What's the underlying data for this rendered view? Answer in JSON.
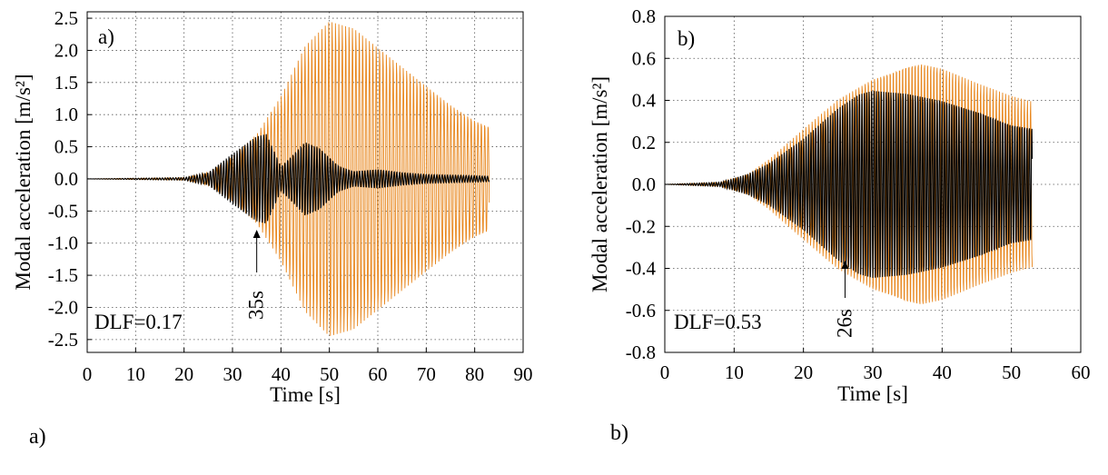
{
  "chart_data": [
    {
      "type": "line",
      "panel_label": "a)",
      "caption": "a)",
      "annotation": "DLF=0.17",
      "arrow_label": "35s",
      "arrow_x": 35,
      "xlabel": "Time [s]",
      "ylabel": "Modal acceleration [m/s²]",
      "xlim": [
        0,
        90
      ],
      "ylim": [
        -2.7,
        2.6
      ],
      "xticks": [
        0,
        10,
        20,
        30,
        40,
        50,
        60,
        70,
        80,
        90
      ],
      "xtick_labels": [
        "0",
        "10",
        "20",
        "30",
        "40",
        "50",
        "60",
        "70",
        "80",
        "90"
      ],
      "yticks": [
        -2.5,
        -2.0,
        -1.5,
        -1.0,
        -0.5,
        0.0,
        0.5,
        1.0,
        1.5,
        2.0,
        2.5
      ],
      "ytick_labels": [
        "-2.5",
        "-2.0",
        "-1.5",
        "-1.0",
        "-0.5",
        "0.0",
        "0.5",
        "1.0",
        "1.5",
        "2.0",
        "2.5"
      ],
      "grid": true,
      "series": [
        {
          "color": "#e8871e",
          "t_end": 83,
          "cycle_period_s": 0.7,
          "envelope_t": [
            0,
            20,
            25,
            30,
            35,
            40,
            45,
            50,
            55,
            60,
            65,
            70,
            75,
            80,
            83
          ],
          "envelope_amp": [
            0,
            0.02,
            0.1,
            0.35,
            0.7,
            1.3,
            2.1,
            2.5,
            2.4,
            2.1,
            1.8,
            1.5,
            1.2,
            0.95,
            0.85
          ]
        },
        {
          "color": "#000000",
          "t_end": 83,
          "cycle_period_s": 0.55,
          "envelope_t": [
            0,
            20,
            25,
            30,
            35,
            37,
            40,
            42,
            45,
            48,
            52,
            55,
            60,
            65,
            70,
            75,
            80,
            83
          ],
          "envelope_amp": [
            0,
            0.02,
            0.1,
            0.4,
            0.68,
            0.72,
            0.2,
            0.35,
            0.6,
            0.5,
            0.2,
            0.12,
            0.15,
            0.1,
            0.07,
            0.06,
            0.05,
            0.04
          ]
        }
      ]
    },
    {
      "type": "line",
      "panel_label": "b)",
      "caption": "b)",
      "annotation": "DLF=0.53",
      "arrow_label": "26s",
      "arrow_x": 26,
      "xlabel": "Time [s]",
      "ylabel": "Modal acceleration [m/s²]",
      "xlim": [
        0,
        60
      ],
      "ylim": [
        -0.8,
        0.8
      ],
      "xticks": [
        0,
        10,
        20,
        30,
        40,
        50,
        60
      ],
      "xtick_labels": [
        "0",
        "10",
        "20",
        "30",
        "40",
        "50",
        "60"
      ],
      "yticks": [
        -0.8,
        -0.6,
        -0.4,
        -0.2,
        0.0,
        0.2,
        0.4,
        0.6,
        0.8
      ],
      "ytick_labels": [
        "-0.8",
        "-0.6",
        "-0.4",
        "-0.2",
        "0.0",
        "0.2",
        "0.4",
        "0.6",
        "0.8"
      ],
      "grid": true,
      "series": [
        {
          "color": "#e8871e",
          "t_end": 53,
          "cycle_period_s": 0.45,
          "envelope_t": [
            0,
            8,
            12,
            15,
            20,
            25,
            30,
            35,
            37,
            40,
            45,
            50,
            53
          ],
          "envelope_amp": [
            0,
            0.01,
            0.05,
            0.12,
            0.27,
            0.42,
            0.53,
            0.6,
            0.61,
            0.58,
            0.5,
            0.43,
            0.4
          ]
        },
        {
          "color": "#000000",
          "t_end": 53,
          "cycle_period_s": 0.35,
          "envelope_t": [
            0,
            8,
            12,
            15,
            20,
            25,
            28,
            30,
            35,
            40,
            45,
            50,
            53
          ],
          "envelope_amp": [
            0,
            0.01,
            0.05,
            0.1,
            0.22,
            0.37,
            0.44,
            0.46,
            0.45,
            0.42,
            0.37,
            0.3,
            0.28
          ]
        }
      ]
    }
  ]
}
